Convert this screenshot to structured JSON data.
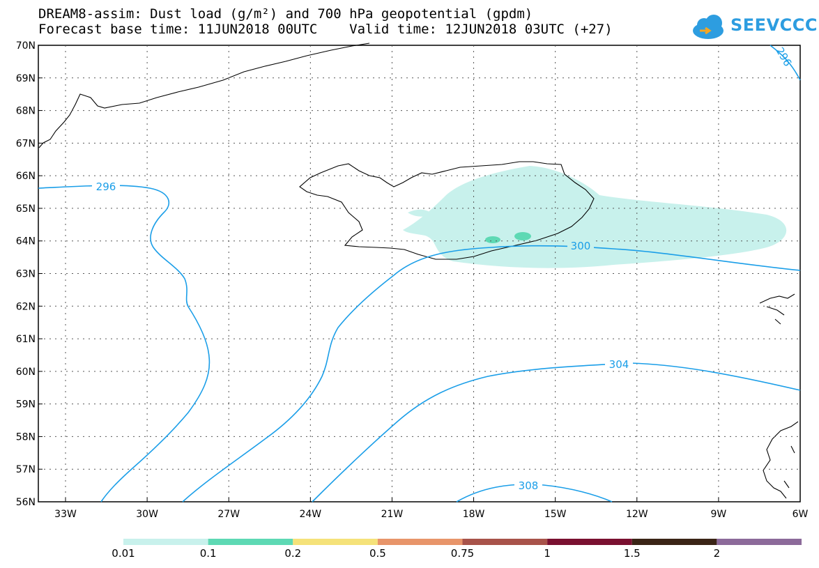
{
  "title": {
    "line1": "DREAM8-assim: Dust load (g/m²) and 700 hPa geopotential (gpdm)",
    "line2_left": "Forecast base time: 11JUN2018 00UTC",
    "line2_right": "Valid time: 12JUN2018 03UTC (+27)"
  },
  "logo": {
    "text": "SEEVCCC",
    "icon": "cloud-icon",
    "color": "#2d9de0"
  },
  "map": {
    "lat_labels": [
      "70N",
      "69N",
      "68N",
      "67N",
      "66N",
      "65N",
      "64N",
      "63N",
      "62N",
      "61N",
      "60N",
      "59N",
      "58N",
      "57N",
      "56N"
    ],
    "lon_labels": [
      "33W",
      "30W",
      "27W",
      "24W",
      "21W",
      "18W",
      "15W",
      "12W",
      "9W",
      "6W"
    ],
    "contour_labels": {
      "c296_west": "296",
      "c296_ne": "296",
      "c300": "300",
      "c304": "304",
      "c308": "308"
    },
    "contour_color": "#1a9ee8",
    "dust_light_color": "#c8f1ec",
    "dust_mid_color": "#5ed9b4"
  },
  "colorbar": {
    "labels": [
      "0.01",
      "0.1",
      "0.2",
      "0.5",
      "0.75",
      "1",
      "1.5",
      "2"
    ],
    "colors": [
      "#c8f1ec",
      "#5ed9b4",
      "#f5e27a",
      "#e8956a",
      "#a8534a",
      "#7a1030",
      "#3a2416",
      "#8c6a9a"
    ]
  }
}
